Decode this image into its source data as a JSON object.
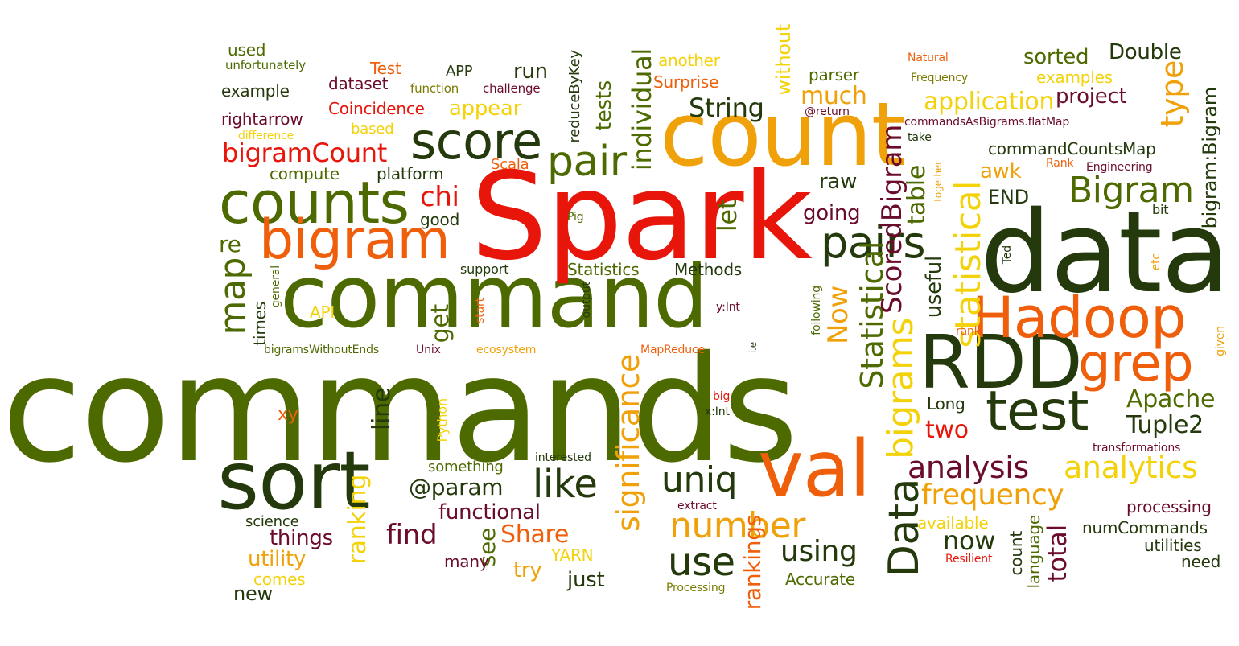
{
  "words": [
    {
      "text": "commands",
      "c": 0
    },
    {
      "text": "command",
      "c": 0
    },
    {
      "text": "Spark",
      "c": 2
    },
    {
      "text": "data",
      "c": 1
    },
    {
      "text": "count",
      "c": 3
    },
    {
      "text": "counts",
      "c": 0
    },
    {
      "text": "bigram",
      "c": 4
    },
    {
      "text": "sort",
      "c": 1
    },
    {
      "text": "val",
      "c": 4
    },
    {
      "text": "RDD",
      "c": 1
    },
    {
      "text": "Hadoop",
      "c": 4
    },
    {
      "text": "test",
      "c": 1
    },
    {
      "text": "grep",
      "c": 4
    },
    {
      "text": "score",
      "c": 1
    },
    {
      "text": "pair",
      "c": 0
    },
    {
      "text": "pairs",
      "c": 1
    },
    {
      "text": "Bigram",
      "c": 0
    },
    {
      "text": "Data",
      "c": 1
    },
    {
      "text": "bigrams",
      "c": 6
    },
    {
      "text": "statistical",
      "c": 6
    },
    {
      "text": "Statistical",
      "c": 0
    },
    {
      "text": "analysis",
      "c": 5
    },
    {
      "text": "analytics",
      "c": 6
    },
    {
      "text": "number",
      "c": 3
    },
    {
      "text": "frequency",
      "c": 3
    },
    {
      "text": "uniq",
      "c": 1
    },
    {
      "text": "use",
      "c": 1
    },
    {
      "text": "like",
      "c": 1
    },
    {
      "text": "significance",
      "c": 3
    },
    {
      "text": "using",
      "c": 1
    },
    {
      "text": "map",
      "c": 0
    },
    {
      "text": "ScoredBigram",
      "c": 5
    },
    {
      "text": "bigramCount",
      "c": 2
    },
    {
      "text": "Apache",
      "c": 0
    },
    {
      "text": "Tuple2",
      "c": 1
    },
    {
      "text": "two",
      "c": 2
    },
    {
      "text": "find",
      "c": 5
    },
    {
      "text": "@param",
      "c": 1
    },
    {
      "text": "Share",
      "c": 4
    },
    {
      "text": "individual",
      "c": 0
    },
    {
      "text": "String",
      "c": 1
    },
    {
      "text": "table",
      "c": 0
    },
    {
      "text": "type",
      "c": 3
    },
    {
      "text": "application",
      "c": 6
    },
    {
      "text": "Now",
      "c": 3
    },
    {
      "text": "total",
      "c": 5
    },
    {
      "text": "functional",
      "c": 5
    },
    {
      "text": "chi",
      "c": 2
    },
    {
      "text": "re",
      "c": 0
    },
    {
      "text": "let",
      "c": 0
    },
    {
      "text": "get",
      "c": 0
    },
    {
      "text": "line",
      "c": 1
    },
    {
      "text": "now",
      "c": 1
    },
    {
      "text": "sorted",
      "c": 0
    },
    {
      "text": "Double",
      "c": 1
    },
    {
      "text": "project",
      "c": 5
    },
    {
      "text": "much",
      "c": 3
    },
    {
      "text": "run",
      "c": 1
    },
    {
      "text": "ranking",
      "c": 6
    },
    {
      "text": "rankings",
      "c": 4
    },
    {
      "text": "bigram:Bigram",
      "c": 1
    },
    {
      "text": "commandCountsMap",
      "c": 1
    },
    {
      "text": "END",
      "c": 1
    },
    {
      "text": "awk",
      "c": 3
    },
    {
      "text": "raw",
      "c": 1
    },
    {
      "text": "going",
      "c": 5
    },
    {
      "text": "useful",
      "c": 1
    },
    {
      "text": "appear",
      "c": 6
    },
    {
      "text": "tests",
      "c": 0
    },
    {
      "text": "things",
      "c": 5
    },
    {
      "text": "utility",
      "c": 3
    },
    {
      "text": "new",
      "c": 1
    },
    {
      "text": "see",
      "c": 0
    },
    {
      "text": "try",
      "c": 3
    },
    {
      "text": "just",
      "c": 1
    },
    {
      "text": "processing",
      "c": 5
    },
    {
      "text": "numCommands",
      "c": 1
    },
    {
      "text": "utilities",
      "c": 1
    },
    {
      "text": "need",
      "c": 1
    },
    {
      "text": "Accurate",
      "c": 0
    },
    {
      "text": "Long",
      "c": 1
    },
    {
      "text": "available",
      "c": 6
    },
    {
      "text": "language",
      "c": 0
    },
    {
      "text": "count",
      "c": 1
    },
    {
      "text": "Methods",
      "c": 1
    },
    {
      "text": "Statistics",
      "c": 0
    },
    {
      "text": "parser",
      "c": 0
    },
    {
      "text": "another",
      "c": 6
    },
    {
      "text": "Surprise",
      "c": 4
    },
    {
      "text": "without",
      "c": 6
    },
    {
      "text": "examples",
      "c": 6
    },
    {
      "text": "Coincidence",
      "c": 2
    },
    {
      "text": "dataset",
      "c": 5
    },
    {
      "text": "example",
      "c": 1
    },
    {
      "text": "rightarrow",
      "c": 5
    },
    {
      "text": "compute",
      "c": 0
    },
    {
      "text": "platform",
      "c": 1
    },
    {
      "text": "Scala",
      "c": 4
    },
    {
      "text": "good",
      "c": 1
    },
    {
      "text": "support",
      "c": 1
    },
    {
      "text": "times",
      "c": 1
    },
    {
      "text": "API",
      "c": 6
    },
    {
      "text": "xy",
      "c": 4
    },
    {
      "text": "something",
      "c": 0
    },
    {
      "text": "science",
      "c": 1
    },
    {
      "text": "many",
      "c": 5
    },
    {
      "text": "comes",
      "c": 6
    },
    {
      "text": "YARN",
      "c": 6
    },
    {
      "text": "used",
      "c": 0
    },
    {
      "text": "unfortunately",
      "c": 0
    },
    {
      "text": "Test",
      "c": 4
    },
    {
      "text": "APP",
      "c": 1
    },
    {
      "text": "function",
      "c": 7
    },
    {
      "text": "challenge",
      "c": 5
    },
    {
      "text": "based",
      "c": 6
    },
    {
      "text": "difference",
      "c": 6
    },
    {
      "text": "reduceByKey",
      "c": 1
    },
    {
      "text": "Natural",
      "c": 4
    },
    {
      "text": "Frequency",
      "c": 7
    },
    {
      "text": "@return",
      "c": 5
    },
    {
      "text": "commandsAsBigrams.flatMap",
      "c": 5
    },
    {
      "text": "take",
      "c": 1
    },
    {
      "text": "together",
      "c": 3
    },
    {
      "text": "Rank",
      "c": 4
    },
    {
      "text": "Engineering",
      "c": 5
    },
    {
      "text": "bit",
      "c": 1
    },
    {
      "text": "Ted",
      "c": 1
    },
    {
      "text": "etc",
      "c": 3
    },
    {
      "text": "Pig",
      "c": 0
    },
    {
      "text": "general",
      "c": 0
    },
    {
      "text": "start",
      "c": 4
    },
    {
      "text": "output",
      "c": 1
    },
    {
      "text": "y:Int",
      "c": 5
    },
    {
      "text": "following",
      "c": 0
    },
    {
      "text": "i.e",
      "c": 1
    },
    {
      "text": "rank",
      "c": 4
    },
    {
      "text": "given",
      "c": 3
    },
    {
      "text": "bigramsWithoutEnds",
      "c": 0
    },
    {
      "text": "Unix",
      "c": 5
    },
    {
      "text": "ecosystem",
      "c": 3
    },
    {
      "text": "MapReduce",
      "c": 4
    },
    {
      "text": "big",
      "c": 2
    },
    {
      "text": "x:Int",
      "c": 1
    },
    {
      "text": "Python",
      "c": 6
    },
    {
      "text": "interested",
      "c": 1
    },
    {
      "text": "extract",
      "c": 5
    },
    {
      "text": "Processing",
      "c": 7
    },
    {
      "text": "Resilient",
      "c": 2
    },
    {
      "text": "transformations",
      "c": 5
    }
  ]
}
